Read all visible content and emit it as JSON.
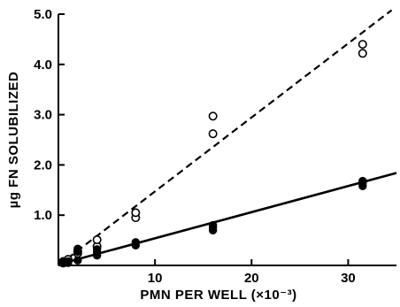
{
  "chart_data": {
    "type": "scatter",
    "xlabel": "PMN PER WELL (×10⁻³)",
    "ylabel": "µg FN SOLUBILIZED",
    "xlim": [
      0,
      35
    ],
    "ylim": [
      0,
      5
    ],
    "x_ticks": [
      {
        "value": 10,
        "label": "10"
      },
      {
        "value": 20,
        "label": "20"
      },
      {
        "value": 30,
        "label": "30"
      }
    ],
    "y_ticks": [
      {
        "value": 1,
        "label": "1.0"
      },
      {
        "value": 2,
        "label": "2.0"
      },
      {
        "value": 3,
        "label": "3.0"
      },
      {
        "value": 4,
        "label": "4.0"
      },
      {
        "value": 5,
        "label": "5.0"
      }
    ],
    "series": [
      {
        "marker": "open-circle",
        "line_style": "dashed",
        "fit_line": [
          [
            0,
            0
          ],
          [
            34.5,
            5.08
          ]
        ],
        "points": [
          [
            0.5,
            0.06
          ],
          [
            0.5,
            0.08
          ],
          [
            1.0,
            0.09
          ],
          [
            1.0,
            0.12
          ],
          [
            2.0,
            0.24
          ],
          [
            2.0,
            0.28
          ],
          [
            4.0,
            0.38
          ],
          [
            4.0,
            0.51
          ],
          [
            8.0,
            0.95
          ],
          [
            8.0,
            1.05
          ],
          [
            16.0,
            2.62
          ],
          [
            16.0,
            2.97
          ],
          [
            31.5,
            4.22
          ],
          [
            31.5,
            4.4
          ]
        ]
      },
      {
        "marker": "filled-circle",
        "line_style": "solid",
        "fit_line": [
          [
            0,
            0.02
          ],
          [
            35,
            1.84
          ]
        ],
        "points": [
          [
            0.5,
            0.04
          ],
          [
            0.5,
            0.06
          ],
          [
            1.0,
            0.05
          ],
          [
            1.0,
            0.08
          ],
          [
            2.0,
            0.1
          ],
          [
            2.0,
            0.3
          ],
          [
            2.0,
            0.33
          ],
          [
            4.0,
            0.2
          ],
          [
            4.0,
            0.26
          ],
          [
            4.0,
            0.32
          ],
          [
            8.0,
            0.4
          ],
          [
            8.0,
            0.46
          ],
          [
            16.0,
            0.7
          ],
          [
            16.0,
            0.76
          ],
          [
            16.0,
            0.8
          ],
          [
            31.5,
            1.58
          ],
          [
            31.5,
            1.64
          ],
          [
            31.5,
            1.68
          ]
        ]
      }
    ]
  }
}
